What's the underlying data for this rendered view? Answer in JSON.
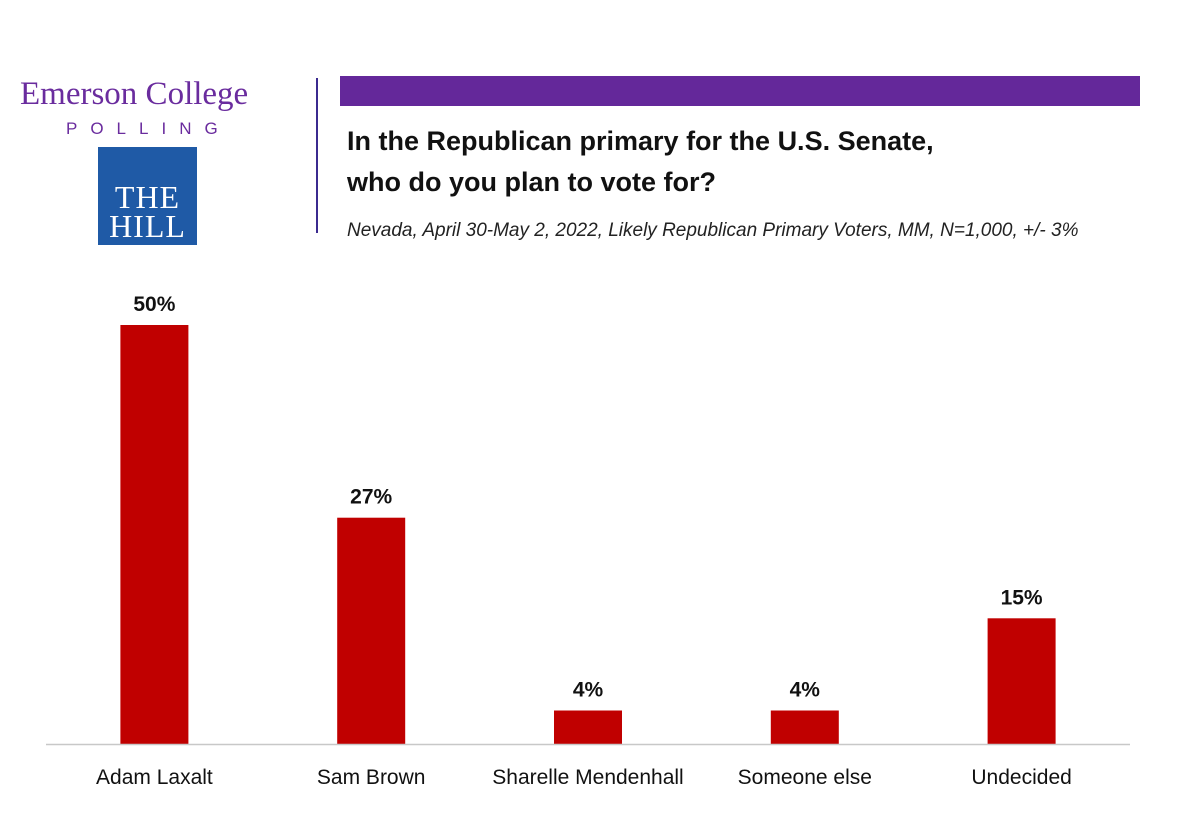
{
  "logos": {
    "emerson_name": "Emerson College",
    "emerson_sub": "POLLING",
    "hill_line1": "THE",
    "hill_line2": "HILL"
  },
  "header": {
    "title_line1": "In the Republican primary for the U.S. Senate,",
    "title_line2": "who do you plan to vote for?",
    "subtitle": "Nevada, April 30-May 2, 2022, Likely Republican Primary Voters, MM, N=1,000, +/- 3%"
  },
  "colors": {
    "bar": "#c00000",
    "brand_purple": "#64289a",
    "hill_blue": "#1f5aa6",
    "axis": "#c8c8c8"
  },
  "chart_data": {
    "type": "bar",
    "title": "In the Republican primary for the U.S. Senate, who do you plan to vote for?",
    "categories": [
      "Adam Laxalt",
      "Sam Brown",
      "Sharelle Mendenhall",
      "Someone else",
      "Undecided"
    ],
    "values": [
      50,
      27,
      4,
      4,
      15
    ],
    "value_labels": [
      "50%",
      "27%",
      "4%",
      "4%",
      "15%"
    ],
    "unit": "%",
    "xlabel": "",
    "ylabel": "",
    "ylim": [
      0,
      50
    ],
    "grid": false,
    "legend": "none"
  }
}
